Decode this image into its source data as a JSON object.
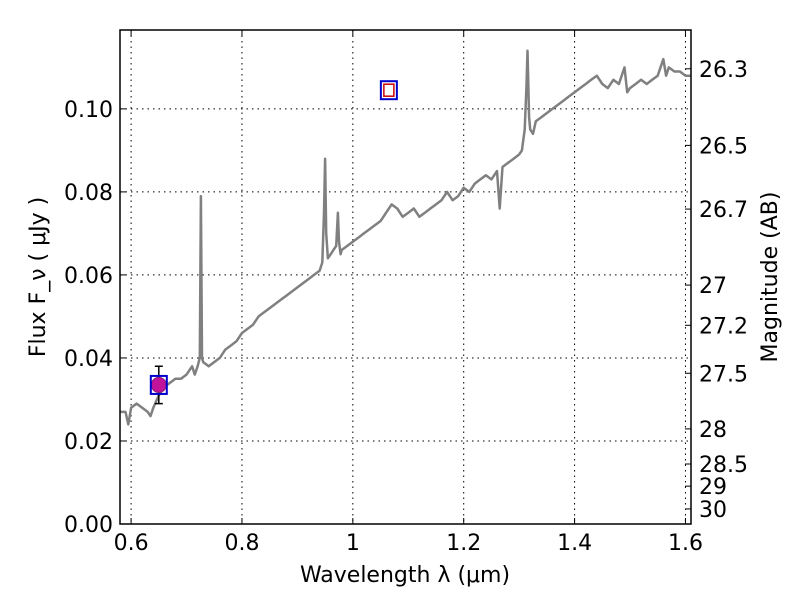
{
  "chart_data": {
    "type": "line",
    "title": "",
    "xlabel": "Wavelength  λ (μm)",
    "ylabel": "Flux  F_ν  ( μJy )",
    "ylabel_right": "Magnitude (AB)",
    "xlim": [
      0.58,
      1.61
    ],
    "ylim": [
      0.0,
      0.119
    ],
    "grid": true,
    "legend": "none",
    "x_ticks": [
      0.6,
      0.8,
      1.0,
      1.2,
      1.4,
      1.6
    ],
    "x_tick_labels": [
      "0.6",
      "0.8",
      "1",
      "1.2",
      "1.4",
      "1.6"
    ],
    "y_ticks": [
      0.0,
      0.02,
      0.04,
      0.06,
      0.08,
      0.1
    ],
    "y_tick_labels": [
      "0.00",
      "0.02",
      "0.04",
      "0.06",
      "0.08",
      "0.10"
    ],
    "right_ticks": [
      30,
      29,
      28.5,
      28,
      27.5,
      27.2,
      27,
      26.7,
      26.5,
      26.3
    ],
    "right_tick_labels": [
      "30",
      "29",
      "28.5",
      "28",
      "27.5",
      "27.2",
      "27",
      "26.7",
      "26.5",
      "26.3"
    ],
    "series": [
      {
        "type": "line",
        "color": "#808080",
        "x": [
          0.58,
          0.59,
          0.595,
          0.6,
          0.61,
          0.62,
          0.63,
          0.635,
          0.64,
          0.65,
          0.66,
          0.67,
          0.68,
          0.69,
          0.7,
          0.705,
          0.71,
          0.715,
          0.72,
          0.724,
          0.726,
          0.728,
          0.73,
          0.74,
          0.75,
          0.76,
          0.77,
          0.78,
          0.79,
          0.8,
          0.81,
          0.82,
          0.83,
          0.84,
          0.85,
          0.86,
          0.87,
          0.88,
          0.89,
          0.9,
          0.91,
          0.92,
          0.93,
          0.94,
          0.945,
          0.948,
          0.95,
          0.952,
          0.955,
          0.96,
          0.965,
          0.97,
          0.973,
          0.975,
          0.978,
          0.98,
          0.99,
          1.0,
          1.01,
          1.02,
          1.03,
          1.04,
          1.05,
          1.06,
          1.07,
          1.08,
          1.09,
          1.1,
          1.11,
          1.12,
          1.13,
          1.14,
          1.15,
          1.16,
          1.17,
          1.18,
          1.19,
          1.2,
          1.21,
          1.22,
          1.23,
          1.24,
          1.25,
          1.26,
          1.265,
          1.27,
          1.28,
          1.29,
          1.3,
          1.305,
          1.31,
          1.313,
          1.315,
          1.318,
          1.32,
          1.325,
          1.33,
          1.34,
          1.35,
          1.36,
          1.37,
          1.38,
          1.39,
          1.4,
          1.41,
          1.42,
          1.43,
          1.44,
          1.45,
          1.46,
          1.47,
          1.48,
          1.49,
          1.495,
          1.5,
          1.51,
          1.52,
          1.53,
          1.54,
          1.55,
          1.56,
          1.565,
          1.57,
          1.58,
          1.59,
          1.6,
          1.61
        ],
        "y": [
          0.027,
          0.027,
          0.024,
          0.028,
          0.029,
          0.028,
          0.027,
          0.026,
          0.028,
          0.031,
          0.033,
          0.034,
          0.035,
          0.035,
          0.036,
          0.037,
          0.038,
          0.036,
          0.038,
          0.04,
          0.079,
          0.04,
          0.039,
          0.038,
          0.039,
          0.04,
          0.042,
          0.043,
          0.044,
          0.046,
          0.047,
          0.048,
          0.05,
          0.051,
          0.052,
          0.053,
          0.054,
          0.055,
          0.056,
          0.057,
          0.058,
          0.059,
          0.06,
          0.061,
          0.063,
          0.075,
          0.088,
          0.07,
          0.064,
          0.065,
          0.066,
          0.067,
          0.075,
          0.068,
          0.065,
          0.066,
          0.067,
          0.068,
          0.069,
          0.07,
          0.071,
          0.072,
          0.073,
          0.075,
          0.077,
          0.076,
          0.074,
          0.075,
          0.076,
          0.074,
          0.075,
          0.076,
          0.077,
          0.078,
          0.08,
          0.078,
          0.079,
          0.081,
          0.08,
          0.082,
          0.083,
          0.084,
          0.083,
          0.085,
          0.076,
          0.086,
          0.087,
          0.088,
          0.089,
          0.09,
          0.095,
          0.105,
          0.114,
          0.098,
          0.095,
          0.094,
          0.097,
          0.098,
          0.099,
          0.1,
          0.101,
          0.102,
          0.103,
          0.104,
          0.105,
          0.106,
          0.107,
          0.108,
          0.106,
          0.105,
          0.107,
          0.106,
          0.11,
          0.104,
          0.105,
          0.106,
          0.107,
          0.106,
          0.107,
          0.108,
          0.112,
          0.108,
          0.11,
          0.109,
          0.109,
          0.108,
          0.108
        ]
      },
      {
        "type": "scatter",
        "name": "",
        "marker": "circle",
        "color": "#c0139a",
        "x": [
          0.65
        ],
        "y": [
          0.0335
        ],
        "yerr": [
          0.0045
        ]
      },
      {
        "type": "scatter",
        "name": "",
        "marker": "square-open",
        "edgecolor": "#0000cc",
        "x": [
          0.65,
          1.065
        ],
        "y": [
          0.0335,
          0.1045
        ]
      },
      {
        "type": "scatter",
        "name": "",
        "marker": "square-open-small",
        "edgecolor": "#cc0000",
        "x": [
          1.065
        ],
        "y": [
          0.1045
        ]
      }
    ]
  }
}
